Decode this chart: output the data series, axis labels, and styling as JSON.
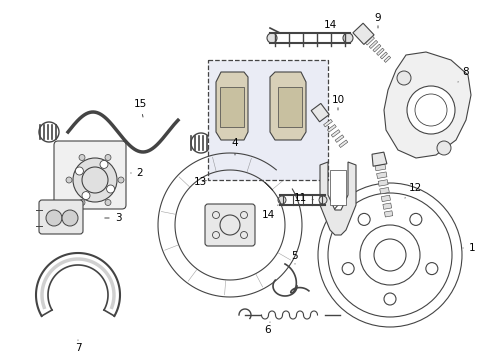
{
  "background_color": "#ffffff",
  "line_color": "#444444",
  "fig_width": 4.89,
  "fig_height": 3.6,
  "dpi": 100,
  "label_fontsize": 7.5
}
